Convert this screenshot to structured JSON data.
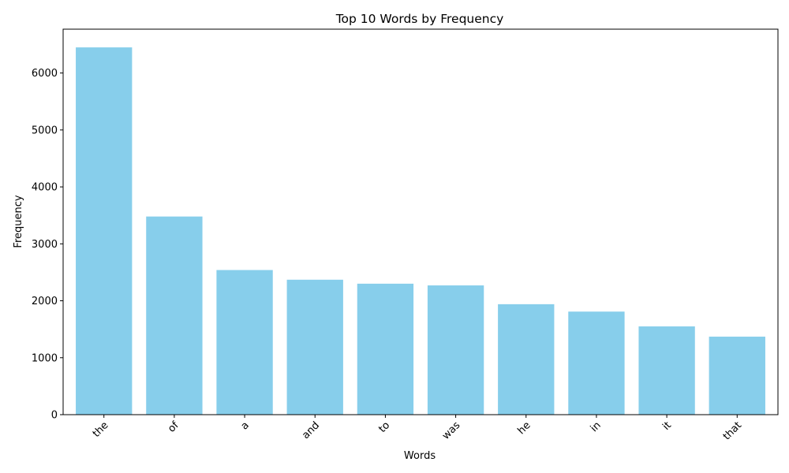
{
  "chart_data": {
    "type": "bar",
    "title": "Top 10 Words by Frequency",
    "xlabel": "Words",
    "ylabel": "Frequency",
    "categories": [
      "the",
      "of",
      "a",
      "and",
      "to",
      "was",
      "he",
      "in",
      "it",
      "that"
    ],
    "values": [
      6450,
      3480,
      2540,
      2370,
      2300,
      2270,
      1940,
      1810,
      1550,
      1370
    ],
    "ylim": [
      0,
      6770
    ],
    "yticks": [
      0,
      1000,
      2000,
      3000,
      4000,
      5000,
      6000
    ],
    "grid": false,
    "legend": "none",
    "x_tick_rotation_deg": 45,
    "bar_color": "#87ceeb"
  }
}
